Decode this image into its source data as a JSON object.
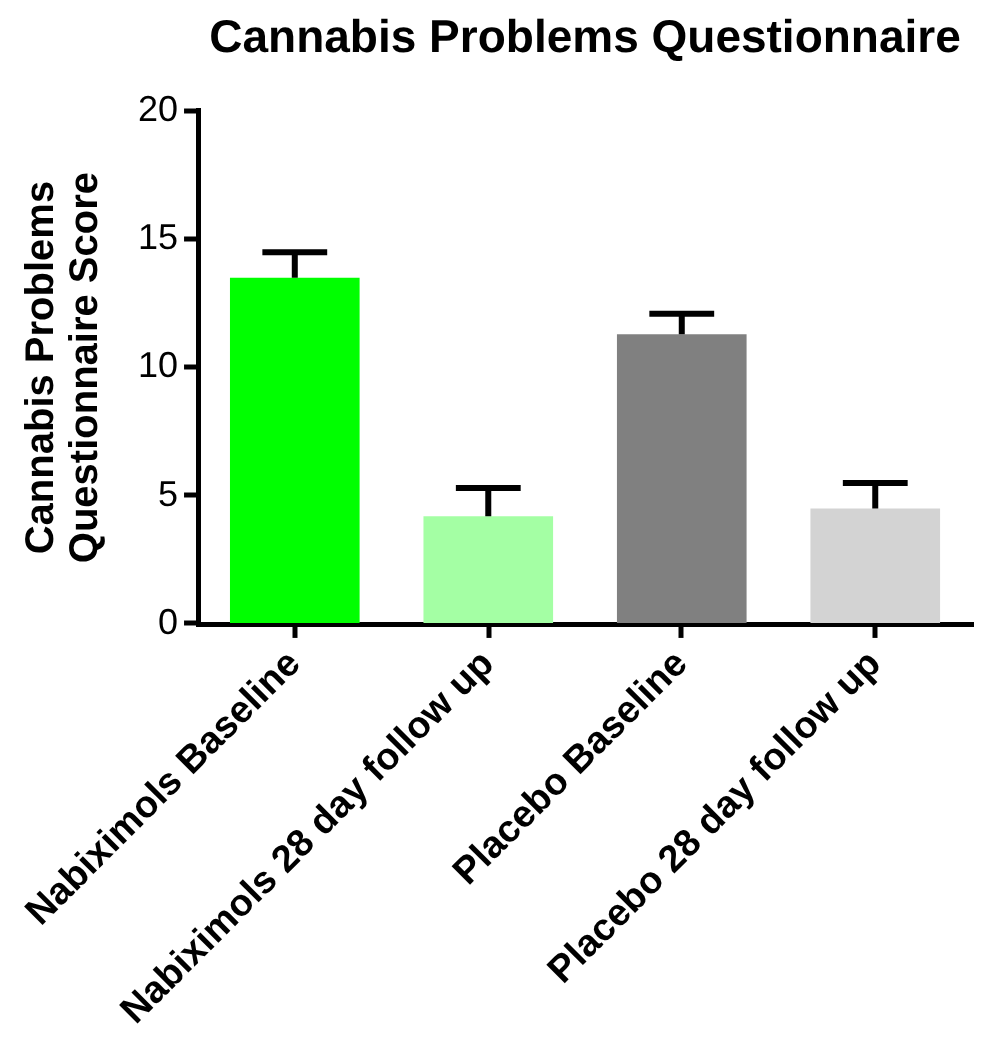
{
  "chart_data": {
    "type": "bar",
    "title": "Cannabis Problems Questionnaire",
    "ylabel": "Cannabis Problems Questionnaire Score",
    "categories": [
      "Nabiximols Baseline",
      "Nabiximols 28 day follow up",
      "Placebo Baseline",
      "Placebo 28 day follow up"
    ],
    "values": [
      13.5,
      4.2,
      11.3,
      4.5
    ],
    "colors": [
      "#00ff00",
      "#a4ffa4",
      "#808080",
      "#d3d3d3"
    ],
    "errors": [
      [
        13.5,
        14.5
      ],
      [
        4.2,
        5.3
      ],
      [
        11.3,
        12.1
      ],
      [
        4.5,
        5.5
      ]
    ],
    "ylim": [
      0,
      20
    ],
    "yticks": [
      0,
      5,
      10,
      15,
      20
    ],
    "legend": false
  }
}
